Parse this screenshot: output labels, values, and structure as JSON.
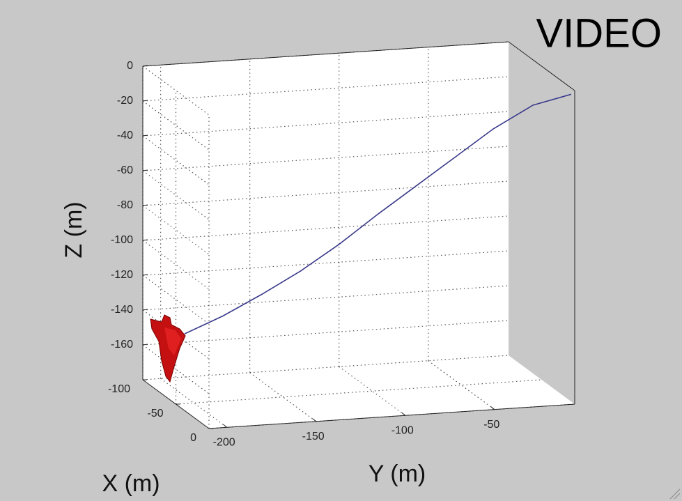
{
  "chart_data": {
    "type": "line3d",
    "title": "VIDEO",
    "xlabel": "X (m)",
    "ylabel": "Y (m)",
    "zlabel": "Z (m)",
    "xlim": [
      -100,
      0
    ],
    "ylim": [
      -210,
      -5
    ],
    "zlim": [
      -180,
      0
    ],
    "xticks": [
      0,
      -50,
      -100
    ],
    "yticks": [
      -200,
      -150,
      -100,
      -50
    ],
    "zticks": [
      0,
      -20,
      -40,
      -60,
      -80,
      -100,
      -120,
      -140,
      -160
    ],
    "grid": true,
    "series": [
      {
        "color": "#3a3a8c",
        "x": [
          -37,
          -33,
          -30,
          -26,
          -22,
          -19,
          -15,
          -11,
          -7,
          -4,
          0
        ],
        "y": [
          -210,
          -190,
          -169,
          -149,
          -129,
          -108,
          -88,
          -68,
          -48,
          -27,
          -7
        ],
        "z": [
          -136,
          -126,
          -114,
          -101,
          -86,
          -69,
          -53,
          -37,
          -21,
          -8,
          -2
        ]
      }
    ]
  }
}
